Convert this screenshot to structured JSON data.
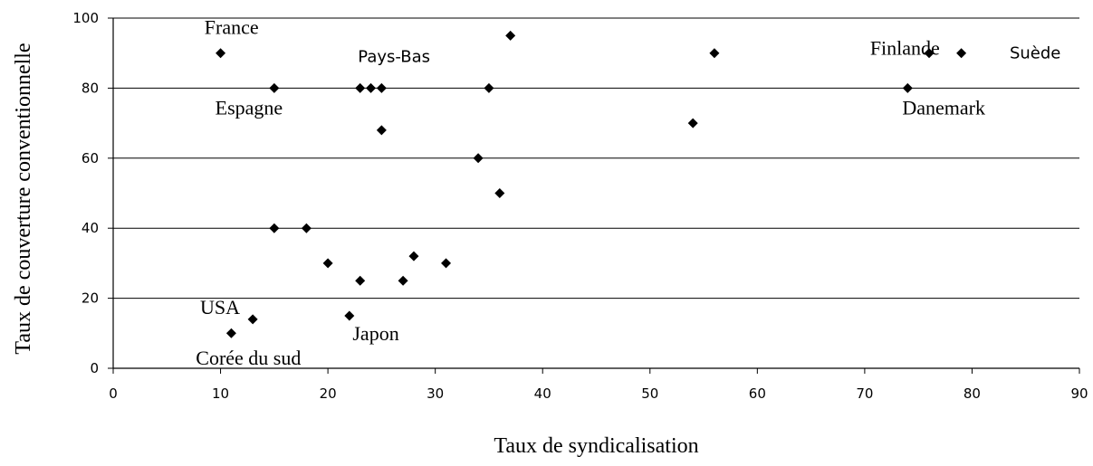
{
  "chart_data": {
    "type": "scatter",
    "xlabel": "Taux de syndicalisation",
    "ylabel": "Taux de couverture conventionnelle",
    "xlim": [
      0,
      90
    ],
    "ylim": [
      0,
      100
    ],
    "x_ticks": [
      0,
      10,
      20,
      30,
      40,
      50,
      60,
      70,
      80,
      90
    ],
    "y_ticks": [
      0,
      20,
      40,
      60,
      80,
      100
    ],
    "grid": "horizontal",
    "points": [
      {
        "x": 10,
        "y": 90
      },
      {
        "x": 15,
        "y": 80
      },
      {
        "x": 23,
        "y": 80
      },
      {
        "x": 24,
        "y": 80
      },
      {
        "x": 25,
        "y": 80
      },
      {
        "x": 25,
        "y": 68
      },
      {
        "x": 35,
        "y": 80
      },
      {
        "x": 37,
        "y": 95
      },
      {
        "x": 34,
        "y": 60
      },
      {
        "x": 36,
        "y": 50
      },
      {
        "x": 56,
        "y": 90
      },
      {
        "x": 54,
        "y": 70
      },
      {
        "x": 74,
        "y": 80
      },
      {
        "x": 76,
        "y": 90
      },
      {
        "x": 79,
        "y": 90
      },
      {
        "x": 15,
        "y": 40
      },
      {
        "x": 18,
        "y": 40
      },
      {
        "x": 20,
        "y": 30
      },
      {
        "x": 23,
        "y": 25
      },
      {
        "x": 27,
        "y": 25
      },
      {
        "x": 28,
        "y": 32
      },
      {
        "x": 31,
        "y": 30
      },
      {
        "x": 22,
        "y": 15
      },
      {
        "x": 13,
        "y": 14
      },
      {
        "x": 11,
        "y": 10
      }
    ],
    "annotations": [
      {
        "text": "France",
        "x": 8.5,
        "y": 95.5,
        "style": "serif"
      },
      {
        "text": "Pays-Bas",
        "x": 22.8,
        "y": 87.5,
        "style": "sans"
      },
      {
        "text": "Espagne",
        "x": 9.5,
        "y": 72.5,
        "style": "serif"
      },
      {
        "text": "Finlande",
        "x": 70.5,
        "y": 89.5,
        "style": "serif"
      },
      {
        "text": "Suède",
        "x": 83.5,
        "y": 88.5,
        "style": "sans"
      },
      {
        "text": "Danemark",
        "x": 73.5,
        "y": 72.5,
        "style": "serif"
      },
      {
        "text": "USA",
        "x": 8.1,
        "y": 15.5,
        "style": "serif"
      },
      {
        "text": "Japon",
        "x": 22.3,
        "y": 8,
        "style": "serif"
      },
      {
        "text": "Corée du sud",
        "x": 7.7,
        "y": 1,
        "style": "serif"
      }
    ]
  }
}
